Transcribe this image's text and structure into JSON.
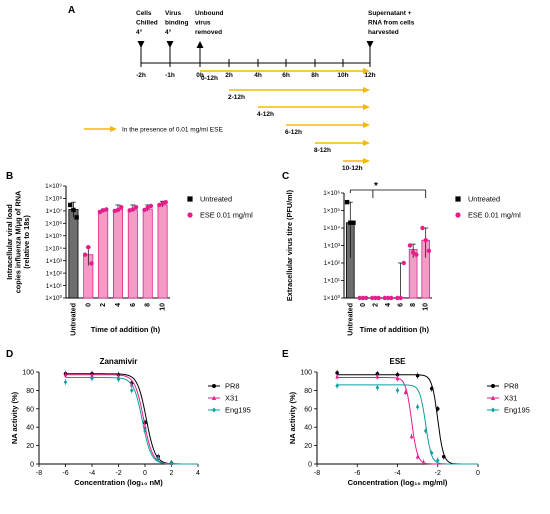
{
  "panels": {
    "A": {
      "label": "A",
      "events": [
        {
          "text": [
            "Cells",
            "Chilled",
            "4°"
          ],
          "marker": "down"
        },
        {
          "text": [
            "Virus",
            "binding",
            "4°"
          ],
          "marker": "down"
        },
        {
          "text": [
            "Unbound",
            "virus",
            "removed"
          ],
          "marker": "up"
        },
        {
          "text": [
            "Supernatant +",
            "RNA from cells",
            "harvested"
          ],
          "marker": "down"
        }
      ],
      "timeline_labels": [
        "-2h",
        "-1h",
        "0h",
        "2h",
        "4h",
        "6h",
        "8h",
        "10h",
        "12h"
      ],
      "arrows": [
        "0-12h",
        "2-12h",
        "4-12h",
        "6-12h",
        "8-12h",
        "10-12h"
      ],
      "legend": "In the presence of 0.01 mg/ml ESE",
      "arrow_color": "#f5b800"
    },
    "B": {
      "label": "B"
    },
    "C": {
      "label": "C"
    },
    "D": {
      "label": "D"
    },
    "E": {
      "label": "E"
    }
  },
  "chart_data": [
    {
      "panel": "B",
      "type": "bar",
      "ylabel": "Intracellular viral load copies influenza M/μg of RNA (relative to 18s)",
      "xlabel": "Time of addition (h)",
      "scale": "log",
      "ylim_exp": [
        0,
        9
      ],
      "y_ticks": [
        "1×10⁰",
        "1×10¹",
        "1×10²",
        "1×10³",
        "1×10⁴",
        "1×10⁵",
        "1×10⁶",
        "1×10⁷",
        "1×10⁸",
        "1×10⁹"
      ],
      "categories": [
        "Untreated",
        "0",
        "2",
        "4",
        "6",
        "8",
        "10"
      ],
      "values": [
        13000000,
        3000,
        11000000,
        13000000,
        12000000,
        14000000,
        30000000
      ],
      "errors_low": [
        3000000,
        400,
        9000000,
        8000000,
        9000000,
        10000000,
        20000000
      ],
      "errors_high": [
        50000000,
        12000,
        14000000,
        30000000,
        30000000,
        30000000,
        60000000
      ],
      "points": [
        [
          30000000,
          12000000,
          3000000
        ],
        [
          3000,
          12000,
          600
        ],
        [
          8000000,
          11000000,
          13000000
        ],
        [
          10000000,
          12000000,
          20000000
        ],
        [
          11000000,
          13000000,
          20000000
        ],
        [
          12000000,
          18000000,
          25000000
        ],
        [
          30000000,
          40000000,
          50000000
        ]
      ],
      "legend": [
        {
          "name": "Untreated",
          "color": "#6e6e6e",
          "marker": "square"
        },
        {
          "name": "ESE 0.01 mg/ml",
          "color": "#e61e8c",
          "marker": "circle"
        }
      ]
    },
    {
      "panel": "C",
      "type": "bar",
      "ylabel": "Extracellular virus titre (PFU/ml)",
      "xlabel": "Time of addition (h)",
      "scale": "log",
      "ylim_exp": [
        0,
        6
      ],
      "y_ticks": [
        "1×10⁰",
        "1×10¹",
        "1×10²",
        "1×10³",
        "1×10⁴",
        "1×10⁵",
        "1×10⁶"
      ],
      "categories": [
        "Untreated",
        "0",
        "2",
        "4",
        "6",
        "8",
        "10"
      ],
      "values": [
        20000,
        1,
        1,
        1,
        1,
        600,
        2000
      ],
      "errors_low": [
        200,
        1,
        1,
        1,
        1,
        200,
        200
      ],
      "errors_high": [
        300000,
        1,
        1,
        1,
        100,
        1200,
        10000
      ],
      "points": [
        [
          300000,
          20000,
          20000
        ],
        [
          1,
          1,
          1
        ],
        [
          1,
          1,
          1
        ],
        [
          1,
          1,
          1
        ],
        [
          1,
          1,
          100
        ],
        [
          1000,
          400,
          300
        ],
        [
          10000,
          2000,
          500
        ]
      ],
      "significance": "*",
      "legend": [
        {
          "name": "Untreated",
          "color": "#6e6e6e",
          "marker": "square"
        },
        {
          "name": "ESE 0.01 mg/ml",
          "color": "#e61e8c",
          "marker": "circle"
        }
      ]
    },
    {
      "panel": "D",
      "type": "line",
      "title": "Zanamivir",
      "xlabel": "Concentration (log₁₀ nM)",
      "ylabel": "NA activity (%)",
      "xlim": [
        -8,
        4
      ],
      "ylim": [
        0,
        100
      ],
      "x_ticks": [
        -8,
        -6,
        -4,
        -2,
        0,
        2,
        4
      ],
      "y_ticks": [
        0,
        20,
        40,
        60,
        80,
        100
      ],
      "series": [
        {
          "name": "PR8",
          "color": "#000000",
          "marker": "circle",
          "top": 98,
          "ic50": 0.1,
          "hill": 1.3,
          "x": [
            -6,
            -4,
            -2,
            -1,
            0,
            1,
            2
          ],
          "y": [
            98,
            98,
            97,
            88,
            45,
            8,
            1
          ]
        },
        {
          "name": "X31",
          "color": "#e61e8c",
          "marker": "triangle",
          "top": 97,
          "ic50": -0.1,
          "hill": 1.3,
          "x": [
            -6,
            -4,
            -2,
            -1,
            0,
            1,
            2
          ],
          "y": [
            97,
            96,
            94,
            86,
            40,
            7,
            1
          ]
        },
        {
          "name": "Eng195",
          "color": "#0f9fa0",
          "marker": "diamond",
          "top": 94,
          "ic50": -0.2,
          "hill": 1.3,
          "x": [
            -6,
            -4,
            -2,
            -1,
            0,
            1,
            2
          ],
          "y": [
            89,
            93,
            92,
            80,
            36,
            6,
            1
          ]
        }
      ]
    },
    {
      "panel": "E",
      "type": "line",
      "title": "ESE",
      "xlabel": "Concentration (log₁₀ mg/ml)",
      "ylabel": "NA activity (%)",
      "xlim": [
        -8,
        0
      ],
      "ylim": [
        0,
        100
      ],
      "x_ticks": [
        -8,
        -6,
        -4,
        -2,
        0
      ],
      "y_ticks": [
        0,
        20,
        40,
        60,
        80,
        100
      ],
      "series": [
        {
          "name": "PR8",
          "color": "#000000",
          "marker": "circle",
          "top": 97,
          "ic50": -2.0,
          "hill": 3,
          "x": [
            -7,
            -5,
            -4,
            -3,
            -2.3,
            -2,
            -1.7
          ],
          "y": [
            99,
            98,
            97,
            96,
            82,
            60,
            8
          ]
        },
        {
          "name": "X31",
          "color": "#e61e8c",
          "marker": "triangle",
          "top": 94,
          "ic50": -3.3,
          "hill": 3,
          "x": [
            -7,
            -5,
            -4,
            -3.6,
            -3.3,
            -3,
            -2.7
          ],
          "y": [
            95,
            95,
            93,
            78,
            30,
            8,
            2
          ]
        },
        {
          "name": "Eng195",
          "color": "#0f9fa0",
          "marker": "diamond",
          "top": 86,
          "ic50": -2.6,
          "hill": 3,
          "x": [
            -7,
            -5,
            -4,
            -3,
            -2.6,
            -2.3,
            -2
          ],
          "y": [
            85,
            83,
            80,
            62,
            36,
            12,
            4
          ]
        }
      ]
    }
  ]
}
